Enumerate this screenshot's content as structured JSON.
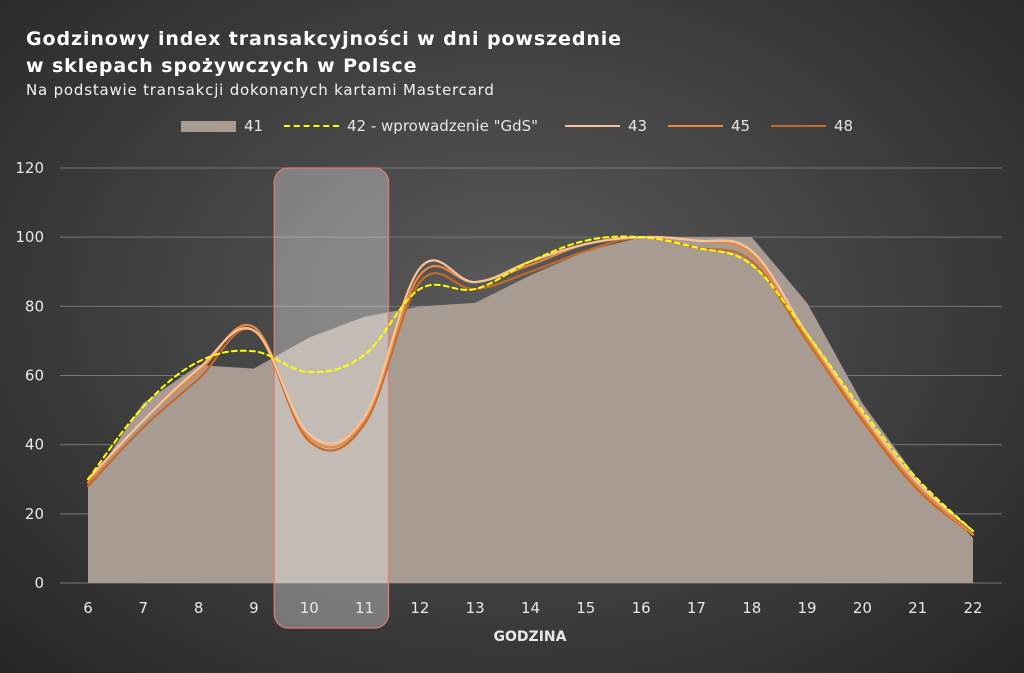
{
  "title_line1": "Godzinowy index transakcyjności w dni powszednie",
  "title_line2": "w sklepach spożywczych w Polsce",
  "subtitle": "Na podstawie transakcji dokonanych kartami Mastercard",
  "colors": {
    "area": "#a89b91",
    "dashed": "#ffff00",
    "s43": "#f7c39e",
    "s45": "#e8893e",
    "s48": "#c46a2b",
    "highlight_fill": "#ffffff",
    "highlight_border": "#e57a72",
    "grid": "#777777"
  },
  "chart_data": {
    "type": "line",
    "title": "Godzinowy index transakcyjności w dni powszednie w sklepach spożywczych w Polsce",
    "subtitle": "Na podstawie transakcji dokonanych kartami Mastercard",
    "xlabel": "GODZINA",
    "ylabel": "",
    "x": [
      6,
      7,
      8,
      9,
      10,
      11,
      12,
      13,
      14,
      15,
      16,
      17,
      18,
      19,
      20,
      21,
      22
    ],
    "ylim": [
      0,
      120
    ],
    "yticks": [
      0,
      20,
      40,
      60,
      80,
      100,
      120
    ],
    "grid": true,
    "legend_position": "top",
    "highlight_range": [
      10,
      11
    ],
    "series": [
      {
        "name": "41",
        "style": "area",
        "values": [
          28,
          52,
          63,
          62,
          71,
          77,
          80,
          81,
          89,
          96,
          100,
          100,
          100,
          81,
          52,
          30,
          13
        ]
      },
      {
        "name": "42 - wprowadzenie \"GdS\"",
        "style": "dashed",
        "values": [
          30,
          51,
          64,
          67,
          61,
          66,
          85,
          85,
          93,
          99,
          100,
          97,
          92,
          72,
          50,
          30,
          15
        ]
      },
      {
        "name": "43",
        "style": "line",
        "values": [
          30,
          47,
          62,
          73,
          43,
          48,
          91,
          87,
          93,
          98,
          100,
          99,
          96,
          72,
          49,
          29,
          15
        ]
      },
      {
        "name": "45",
        "style": "line",
        "values": [
          29,
          47,
          61,
          74,
          42,
          47,
          89,
          87,
          92,
          98,
          100,
          99,
          95,
          71,
          48,
          28,
          14
        ]
      },
      {
        "name": "48",
        "style": "line",
        "values": [
          28,
          45,
          59,
          73,
          41,
          46,
          87,
          85,
          90,
          96,
          100,
          97,
          93,
          70,
          47,
          27,
          14
        ]
      }
    ]
  }
}
